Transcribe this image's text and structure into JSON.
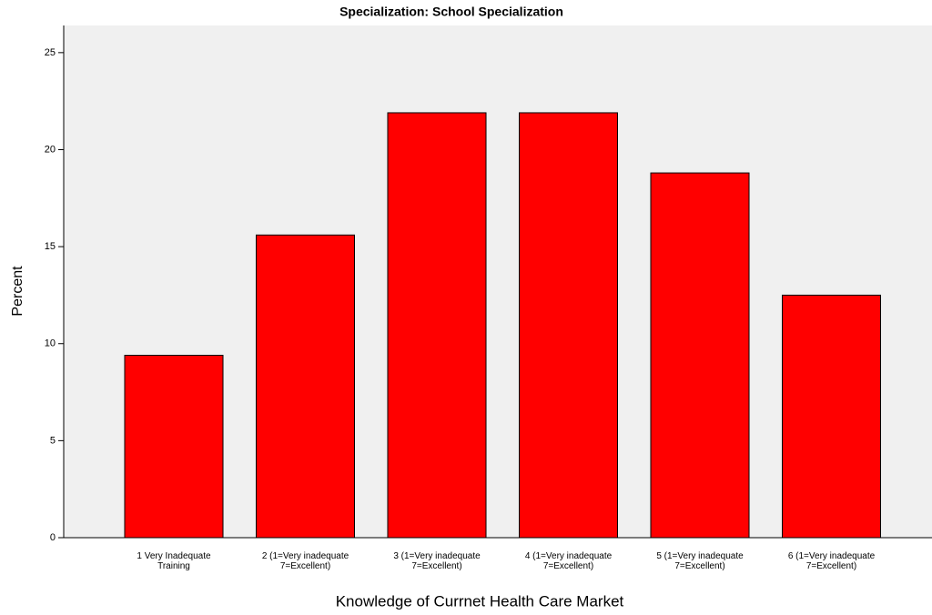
{
  "chart_data": {
    "type": "bar",
    "title": "Specialization: School Specialization",
    "x_label": "Knowledge of Currnet Health Care Market",
    "y_label": "Percent",
    "categories": [
      [
        "1 Very Inadequate",
        "Training"
      ],
      [
        "2 (1=Very inadequate",
        "7=Excellent)"
      ],
      [
        "3 (1=Very inadequate",
        "7=Excellent)"
      ],
      [
        "4 (1=Very inadequate",
        "7=Excellent)"
      ],
      [
        "5 (1=Very inadequate",
        "7=Excellent)"
      ],
      [
        "6 (1=Very inadequate",
        "7=Excellent)"
      ]
    ],
    "values": [
      9.4,
      15.6,
      21.9,
      21.9,
      18.8,
      12.5
    ],
    "color": "#ff0000",
    "ylim": [
      0,
      26.4
    ],
    "yticks": [
      0,
      5,
      10,
      15,
      20,
      25
    ],
    "grid": false
  }
}
